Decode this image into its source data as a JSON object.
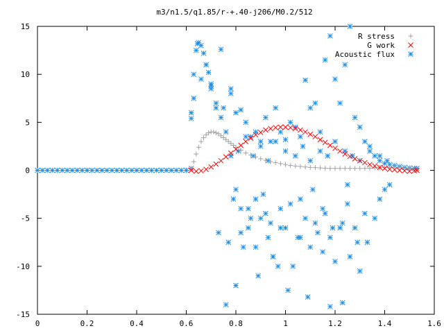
{
  "chart_data": {
    "type": "scatter",
    "title": "m3/n1.5/q1.85/r-+.40-j206/M0.2/512",
    "xlabel": "",
    "ylabel": "",
    "xlim": [
      0,
      1.6
    ],
    "ylim": [
      -15,
      15
    ],
    "xticks": [
      "0",
      "0.2",
      "0.4",
      "0.6",
      "0.8",
      "1",
      "1.2",
      "1.4",
      "1.6"
    ],
    "yticks": [
      "15",
      "10",
      "5",
      "0",
      "-5",
      "-10",
      "-15"
    ],
    "grid": false,
    "legend_position": "top-right",
    "series": [
      {
        "name": "R stress",
        "marker": "plus",
        "color": "#a0a0a0",
        "x": [
          0.62,
          0.63,
          0.64,
          0.65,
          0.66,
          0.67,
          0.68,
          0.69,
          0.7,
          0.71,
          0.72,
          0.73,
          0.74,
          0.75,
          0.76,
          0.77,
          0.78,
          0.79,
          0.8,
          0.82,
          0.84,
          0.86,
          0.88,
          0.9,
          0.92,
          0.94,
          0.96,
          0.98,
          1.0,
          1.02,
          1.04,
          1.06,
          1.08,
          1.1,
          1.12,
          1.14,
          1.16,
          1.18,
          1.2,
          1.22,
          1.24,
          1.26,
          1.28,
          1.3,
          1.32,
          1.34,
          1.36,
          1.38,
          1.4,
          1.42,
          1.44,
          1.46,
          1.48,
          1.5,
          1.52,
          1.53
        ],
        "y": [
          0.2,
          0.9,
          1.7,
          2.4,
          3.0,
          3.4,
          3.7,
          3.9,
          4.0,
          4.0,
          3.9,
          3.8,
          3.6,
          3.4,
          3.2,
          3.0,
          2.8,
          2.6,
          2.4,
          2.1,
          1.8,
          1.6,
          1.4,
          1.2,
          1.05,
          0.9,
          0.8,
          0.7,
          0.6,
          0.5,
          0.45,
          0.4,
          0.35,
          0.3,
          0.28,
          0.25,
          0.22,
          0.2,
          0.2,
          0.2,
          0.2,
          0.2,
          0.2,
          0.2,
          0.2,
          0.22,
          0.25,
          0.28,
          0.3,
          0.32,
          0.32,
          0.3,
          0.25,
          0.15,
          0.08,
          0.05
        ]
      },
      {
        "name": "G work",
        "marker": "cross",
        "color": "#ff0000",
        "x": [
          0.62,
          0.64,
          0.66,
          0.68,
          0.7,
          0.72,
          0.74,
          0.76,
          0.78,
          0.8,
          0.82,
          0.84,
          0.86,
          0.88,
          0.9,
          0.92,
          0.94,
          0.96,
          0.98,
          1.0,
          1.02,
          1.04,
          1.06,
          1.08,
          1.1,
          1.12,
          1.14,
          1.16,
          1.18,
          1.2,
          1.22,
          1.24,
          1.26,
          1.28,
          1.3,
          1.32,
          1.34,
          1.36,
          1.38,
          1.4,
          1.42,
          1.44,
          1.46,
          1.48,
          1.5,
          1.52,
          1.53
        ],
        "y": [
          0.0,
          -0.1,
          -0.05,
          0.1,
          0.35,
          0.65,
          1.0,
          1.4,
          1.8,
          2.2,
          2.6,
          3.0,
          3.35,
          3.7,
          3.95,
          4.2,
          4.35,
          4.45,
          4.5,
          4.5,
          4.45,
          4.35,
          4.2,
          4.0,
          3.75,
          3.5,
          3.2,
          2.9,
          2.6,
          2.3,
          2.0,
          1.7,
          1.45,
          1.2,
          1.0,
          0.8,
          0.6,
          0.45,
          0.3,
          0.2,
          0.1,
          0.05,
          0.0,
          -0.05,
          -0.1,
          -0.05,
          0.0
        ]
      },
      {
        "name": "Acoustic flux",
        "marker": "star",
        "color": "#1e8fe8",
        "x": [
          0.0,
          0.02,
          0.04,
          0.06,
          0.08,
          0.1,
          0.12,
          0.14,
          0.16,
          0.18,
          0.2,
          0.22,
          0.24,
          0.26,
          0.28,
          0.3,
          0.32,
          0.34,
          0.36,
          0.38,
          0.4,
          0.42,
          0.44,
          0.46,
          0.48,
          0.5,
          0.52,
          0.54,
          0.56,
          0.58,
          0.6,
          0.62,
          0.62,
          0.63,
          0.64,
          0.645,
          0.65,
          0.66,
          0.67,
          0.68,
          0.69,
          0.7,
          0.72,
          0.74,
          0.76,
          0.78,
          0.8,
          0.82,
          0.84,
          0.86,
          0.88,
          0.9,
          0.92,
          0.94,
          0.96,
          0.98,
          1.0,
          1.02,
          1.04,
          1.06,
          1.08,
          1.1,
          1.12,
          1.14,
          1.16,
          1.18,
          1.2,
          1.22,
          1.24,
          1.26,
          1.28,
          1.3,
          1.32,
          1.34,
          1.36,
          1.38,
          1.4,
          1.42,
          1.44,
          1.46,
          1.48,
          1.5,
          1.52,
          1.53,
          0.66,
          0.68,
          0.7,
          0.72,
          0.75,
          0.78,
          0.8,
          0.82,
          0.85,
          0.88,
          0.9,
          0.93,
          0.95,
          0.98,
          1.0,
          1.03,
          1.06,
          1.08,
          1.1,
          1.13,
          1.15,
          1.18,
          1.2,
          1.23,
          1.25,
          1.28,
          1.3,
          1.33,
          1.36,
          1.38,
          1.4,
          1.42,
          0.62,
          0.63,
          0.7,
          0.74,
          0.78,
          0.81,
          0.84,
          0.87,
          0.9,
          0.93,
          0.96,
          1.0,
          1.04,
          1.07,
          1.1,
          1.14,
          1.17,
          1.2,
          1.24,
          1.27,
          1.3,
          1.34,
          1.38,
          1.41,
          0.73,
          0.77,
          0.8,
          0.83,
          0.86,
          0.89,
          0.92,
          0.95,
          0.98,
          1.01,
          1.05,
          1.09,
          1.12,
          1.15,
          1.18,
          1.22,
          1.26,
          1.29,
          1.32,
          0.76,
          0.79,
          0.82,
          0.85,
          0.88,
          0.91,
          0.94,
          0.97,
          1.02,
          1.06,
          1.11,
          1.16,
          1.19,
          1.23,
          1.25
        ],
        "y": [
          0,
          0,
          0,
          0,
          0,
          0,
          0,
          0,
          0,
          0,
          0,
          0,
          0,
          0,
          0,
          0,
          0,
          0,
          0,
          0,
          0,
          0,
          0,
          0,
          0,
          0,
          0,
          0,
          0,
          0,
          0,
          0.2,
          5.4,
          10.0,
          12.5,
          13.2,
          13.3,
          13.0,
          12.2,
          11.0,
          10.2,
          8.8,
          6.5,
          12.6,
          4.0,
          1.5,
          6.0,
          6.3,
          5.0,
          3.5,
          4.0,
          3.0,
          5.5,
          3.0,
          6.5,
          4.0,
          3.2,
          5.0,
          4.5,
          3.5,
          9.4,
          6.5,
          7.0,
          4.0,
          11.5,
          14.0,
          9.5,
          7.0,
          11.0,
          15.0,
          5.5,
          4.5,
          3.0,
          2.5,
          1.5,
          1.0,
          0.7,
          0.6,
          0.5,
          0.4,
          0.3,
          0.25,
          0.2,
          0.2,
          9.5,
          11.0,
          8.5,
          7.0,
          6.5,
          8.0,
          -2.0,
          -4.0,
          -6.0,
          -3.0,
          -5.0,
          -7.0,
          -9.0,
          -4.0,
          -6.0,
          -10.0,
          -3.0,
          -5.0,
          -8.0,
          -6.5,
          -4.0,
          -7.0,
          -9.5,
          -5.5,
          -3.5,
          -6.0,
          -10.5,
          -7.5,
          -5.0,
          -3.0,
          -2.0,
          -1.5,
          6.0,
          7.5,
          9.0,
          5.5,
          8.5,
          2.0,
          3.5,
          1.5,
          2.5,
          1.0,
          3.0,
          2.0,
          1.5,
          2.5,
          1.0,
          2.0,
          1.5,
          3.0,
          2.0,
          1.5,
          1.0,
          2.0,
          1.5,
          1.0,
          -6.5,
          -7.5,
          -12.0,
          -8.0,
          -5.0,
          -11.0,
          -4.5,
          -9.0,
          -6.0,
          -12.5,
          -7.0,
          -13.2,
          -5.5,
          -8.5,
          -14.2,
          -6.0,
          -9.0,
          -7.5,
          -4.5,
          -14.0,
          -3.0,
          -6.5,
          -4.0,
          -8.0,
          -2.5,
          -5.5,
          -10.0,
          -3.5,
          -7.0,
          -2.0,
          -4.5,
          -6.0,
          -13.8,
          -1.5
        ]
      }
    ]
  }
}
